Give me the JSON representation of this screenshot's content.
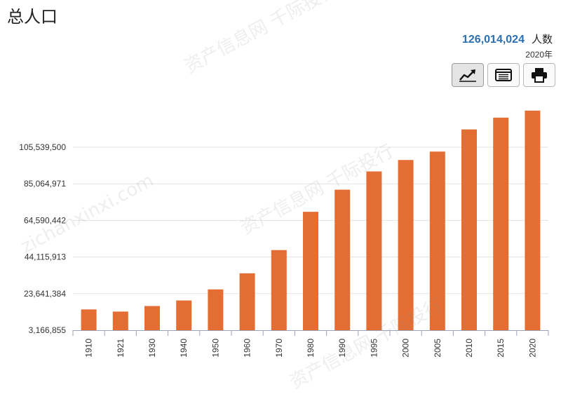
{
  "header": {
    "title": "总人口"
  },
  "stat": {
    "value": "126,014,024",
    "unit": "人数",
    "year": "2020年"
  },
  "toolbar": {
    "buttons": [
      {
        "name": "line-chart-button",
        "icon": "line-chart-icon",
        "active": true
      },
      {
        "name": "table-view-button",
        "icon": "table-icon",
        "active": false
      },
      {
        "name": "print-button",
        "icon": "print-icon",
        "active": false
      }
    ]
  },
  "watermark": {
    "line1": "资产信息网 千际投行",
    "line2": "zichanxinxi.com"
  },
  "colors": {
    "bar": "#e36d32",
    "accent": "#2a6fb0",
    "grid": "#e3e3e3"
  },
  "chart_data": {
    "type": "bar",
    "title": "",
    "xlabel": "",
    "ylabel": "",
    "categories": [
      "1910",
      "1921",
      "1930",
      "1940",
      "1950",
      "1960",
      "1970",
      "1980",
      "1990",
      "1995",
      "2000",
      "2005",
      "2010",
      "2015",
      "2020"
    ],
    "values": [
      14800000,
      13600000,
      16700000,
      19800000,
      26000000,
      35000000,
      48000000,
      69400000,
      81800000,
      92000000,
      98400000,
      103100000,
      115500000,
      122100000,
      126014024
    ],
    "yticks": [
      "3,166,855",
      "23,641,384",
      "44,115,913",
      "64,590,442",
      "85,064,971",
      "105,539,500"
    ],
    "ylim": [
      3166855,
      126014024
    ],
    "grid": true,
    "legend": "none"
  }
}
